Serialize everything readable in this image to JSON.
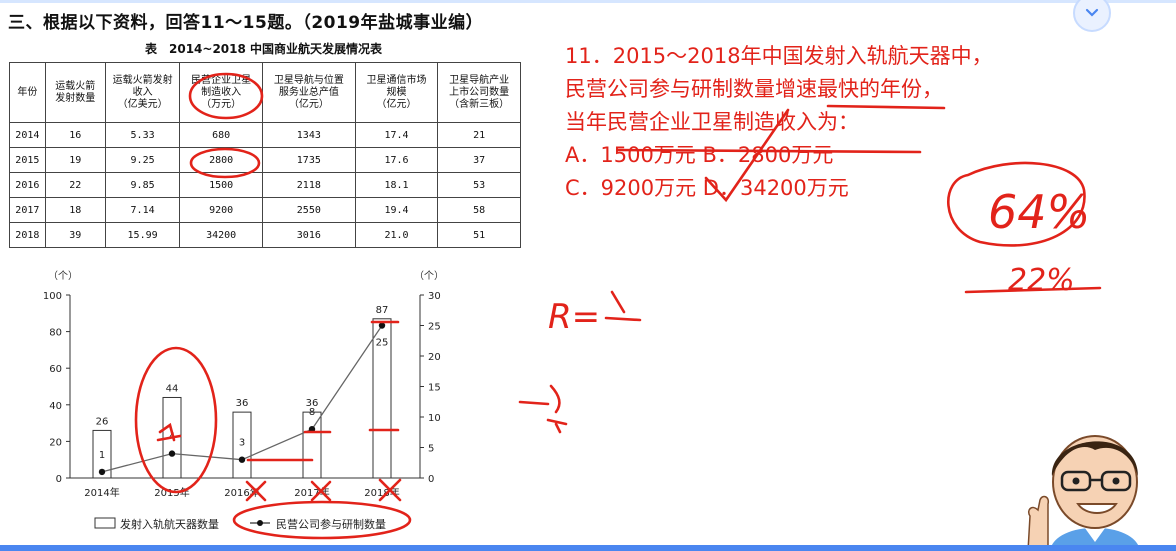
{
  "header": {
    "title": "三、根据以下资料，回答11～15题。（2019年盐城事业编）"
  },
  "table": {
    "title": "表　2014~2018 中国商业航天发展情况表",
    "headers": [
      "年份",
      "运载火箭\n发射数量",
      "运载火箭发射\n收入\n（亿美元）",
      "民营企业卫星\n制造收入\n（万元）",
      "卫星导航与位置\n服务业总产值\n（亿元）",
      "卫星通信市场\n规模\n（亿元）",
      "卫星导航产业\n上市公司数量\n（含新三板）"
    ],
    "rows": [
      [
        "2014",
        "16",
        "5.33",
        "680",
        "1343",
        "17.4",
        "21"
      ],
      [
        "2015",
        "19",
        "9.25",
        "2800",
        "1735",
        "17.6",
        "37"
      ],
      [
        "2016",
        "22",
        "9.85",
        "1500",
        "2118",
        "18.1",
        "53"
      ],
      [
        "2017",
        "18",
        "7.14",
        "9200",
        "2550",
        "19.4",
        "58"
      ],
      [
        "2018",
        "39",
        "15.99",
        "34200",
        "3016",
        "21.0",
        "51"
      ]
    ]
  },
  "chart_data": {
    "type": "bar",
    "categories": [
      "2014年",
      "2015年",
      "2016年",
      "2017年",
      "2018年"
    ],
    "series": [
      {
        "name": "发射入轨航天器数量",
        "kind": "bar",
        "axis": "left",
        "values": [
          26,
          44,
          36,
          36,
          87
        ]
      },
      {
        "name": "民营公司参与研制数量",
        "kind": "line",
        "axis": "right",
        "values": [
          1,
          4,
          3,
          8,
          25
        ]
      }
    ],
    "left_unit": "（个）",
    "right_unit": "（个）",
    "ylim_left": [
      0,
      100
    ],
    "ylim_right": [
      0,
      30
    ],
    "left_ticks": [
      "100",
      "80",
      "60",
      "40",
      "20",
      "0"
    ],
    "right_ticks": [
      "30",
      "25",
      "20",
      "15",
      "10",
      "5",
      "0"
    ],
    "legend_position": "bottom"
  },
  "question": {
    "lines": [
      "11．2015～2018年中国发射入轨航天器中，",
      "民营公司参与研制数量增速最快的年份，",
      "当年民营企业卫星制造收入为："
    ],
    "options": [
      {
        "label": "A．1500万元",
        "sep": " "
      },
      {
        "label": "B．2800万元",
        "sep": ""
      },
      {
        "label": "C．9200万元",
        "sep": " "
      },
      {
        "label": "D．34200万元",
        "sep": ""
      }
    ]
  },
  "annotations": {
    "formula_r": "R=",
    "note_64": "64%",
    "note_22": "22%"
  },
  "colors": {
    "ink": "#e2231a",
    "accent": "#4a86f0"
  }
}
